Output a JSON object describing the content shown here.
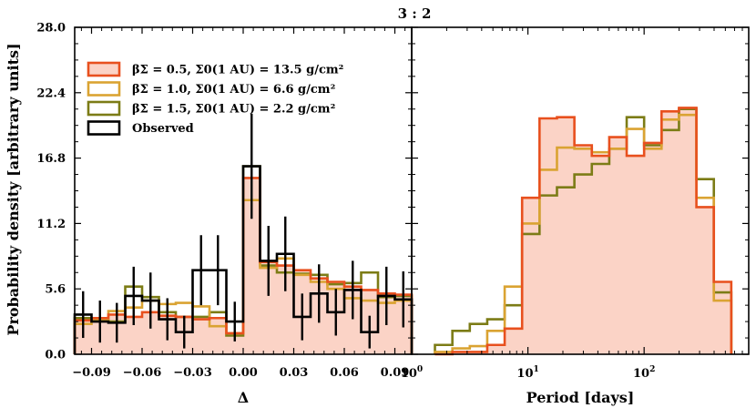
{
  "chart_data": {
    "title": "3 : 2",
    "ylabel": "Probability density [arbitrary units]",
    "ylim": [
      0,
      28
    ],
    "yticks": [
      0.0,
      5.6,
      11.2,
      16.8,
      22.4,
      28.0
    ],
    "ytick_labels": [
      "0.0",
      "5.6",
      "11.2",
      "16.8",
      "22.4",
      "28.0"
    ],
    "colors": {
      "s1": "#e8501e",
      "s1_fill": "#fbd3c6",
      "s2": "#daa332",
      "s3": "#7c7c16",
      "observed": "#000000"
    },
    "legend": [
      {
        "key": "s1",
        "label": "βΣ = 0.5, Σ0(1 AU) = 13.5 g/cm²"
      },
      {
        "key": "s2",
        "label": "βΣ = 1.0, Σ0(1 AU) = 6.6 g/cm²"
      },
      {
        "key": "s3",
        "label": "βΣ = 1.5, Σ0(1 AU) = 2.2 g/cm²"
      },
      {
        "key": "observed",
        "label": "Observed"
      }
    ],
    "panels": [
      {
        "type": "histogram",
        "xlabel": "Δ",
        "xlim": [
          -0.1,
          0.1
        ],
        "xticks": [
          -0.09,
          -0.06,
          -0.03,
          0.0,
          0.03,
          0.06,
          0.09
        ],
        "xtick_labels": [
          "−0.09",
          "−0.06",
          "−0.03",
          "0.00",
          "0.03",
          "0.06",
          "0.09"
        ],
        "bin_edges": [
          -0.1,
          -0.09,
          -0.08,
          -0.07,
          -0.06,
          -0.05,
          -0.04,
          -0.03,
          -0.02,
          -0.01,
          0.0,
          0.01,
          0.02,
          0.03,
          0.04,
          0.05,
          0.06,
          0.07,
          0.08,
          0.09,
          0.1
        ],
        "series": [
          {
            "key": "s1",
            "values": [
              2.9,
              3.1,
              3.4,
              3.2,
              3.6,
              3.3,
              3.2,
              3.0,
              3.1,
              1.8,
              15.1,
              7.9,
              7.6,
              7.2,
              6.5,
              6.2,
              5.8,
              5.5,
              5.2,
              5.1
            ],
            "filled": true
          },
          {
            "key": "s2",
            "values": [
              2.6,
              3.0,
              3.7,
              4.0,
              4.6,
              4.3,
              4.4,
              4.1,
              2.4,
              1.8,
              13.2,
              7.4,
              8.2,
              6.8,
              6.2,
              5.6,
              4.8,
              4.6,
              4.4,
              4.6
            ]
          },
          {
            "key": "s3",
            "values": [
              3.1,
              2.9,
              2.8,
              5.8,
              4.9,
              3.6,
              3.2,
              3.2,
              3.6,
              1.6,
              16.1,
              7.6,
              7.0,
              6.9,
              6.8,
              6.0,
              6.1,
              7.0,
              4.9,
              5.0
            ]
          }
        ],
        "observed": {
          "values": [
            3.4,
            2.8,
            2.7,
            5.0,
            4.6,
            3.0,
            1.9,
            7.2,
            7.2,
            2.8,
            16.1,
            8.0,
            8.6,
            3.2,
            5.2,
            3.6,
            5.5,
            1.9,
            5.0,
            4.7
          ],
          "errors": [
            2.0,
            1.8,
            1.7,
            2.5,
            2.4,
            1.8,
            1.4,
            3.0,
            3.0,
            1.7,
            4.5,
            3.0,
            3.2,
            2.0,
            2.5,
            2.0,
            2.5,
            1.4,
            2.5,
            2.4
          ]
        }
      },
      {
        "type": "histogram",
        "xlabel": "Period [days]",
        "xscale": "log",
        "xlim_log10": [
          0,
          2.9
        ],
        "xticks": [
          1,
          10,
          100
        ],
        "xtick_labels": [
          "10^0",
          "10^1",
          "10^2"
        ],
        "bin_edges_log10": [
          0.2,
          0.35,
          0.5,
          0.65,
          0.8,
          0.95,
          1.1,
          1.25,
          1.4,
          1.55,
          1.7,
          1.85,
          2.0,
          2.15,
          2.3,
          2.45,
          2.6,
          2.75
        ],
        "series": [
          {
            "key": "s1",
            "values": [
              0.0,
              0.2,
              0.2,
              0.8,
              2.2,
              13.4,
              20.2,
              20.3,
              17.9,
              17.0,
              18.6,
              17.0,
              18.1,
              20.8,
              21.1,
              12.6,
              6.2
            ],
            "filled": true
          },
          {
            "key": "s2",
            "values": [
              0.2,
              0.5,
              0.7,
              2.0,
              5.8,
              11.2,
              15.8,
              17.7,
              17.6,
              17.3,
              17.6,
              19.3,
              17.6,
              20.1,
              20.5,
              13.4,
              4.6
            ]
          },
          {
            "key": "s3",
            "values": [
              0.8,
              2.0,
              2.6,
              3.0,
              4.2,
              10.3,
              13.6,
              14.3,
              15.4,
              16.3,
              17.6,
              20.3,
              17.9,
              19.2,
              21.0,
              15.0,
              5.3
            ]
          }
        ]
      }
    ]
  }
}
